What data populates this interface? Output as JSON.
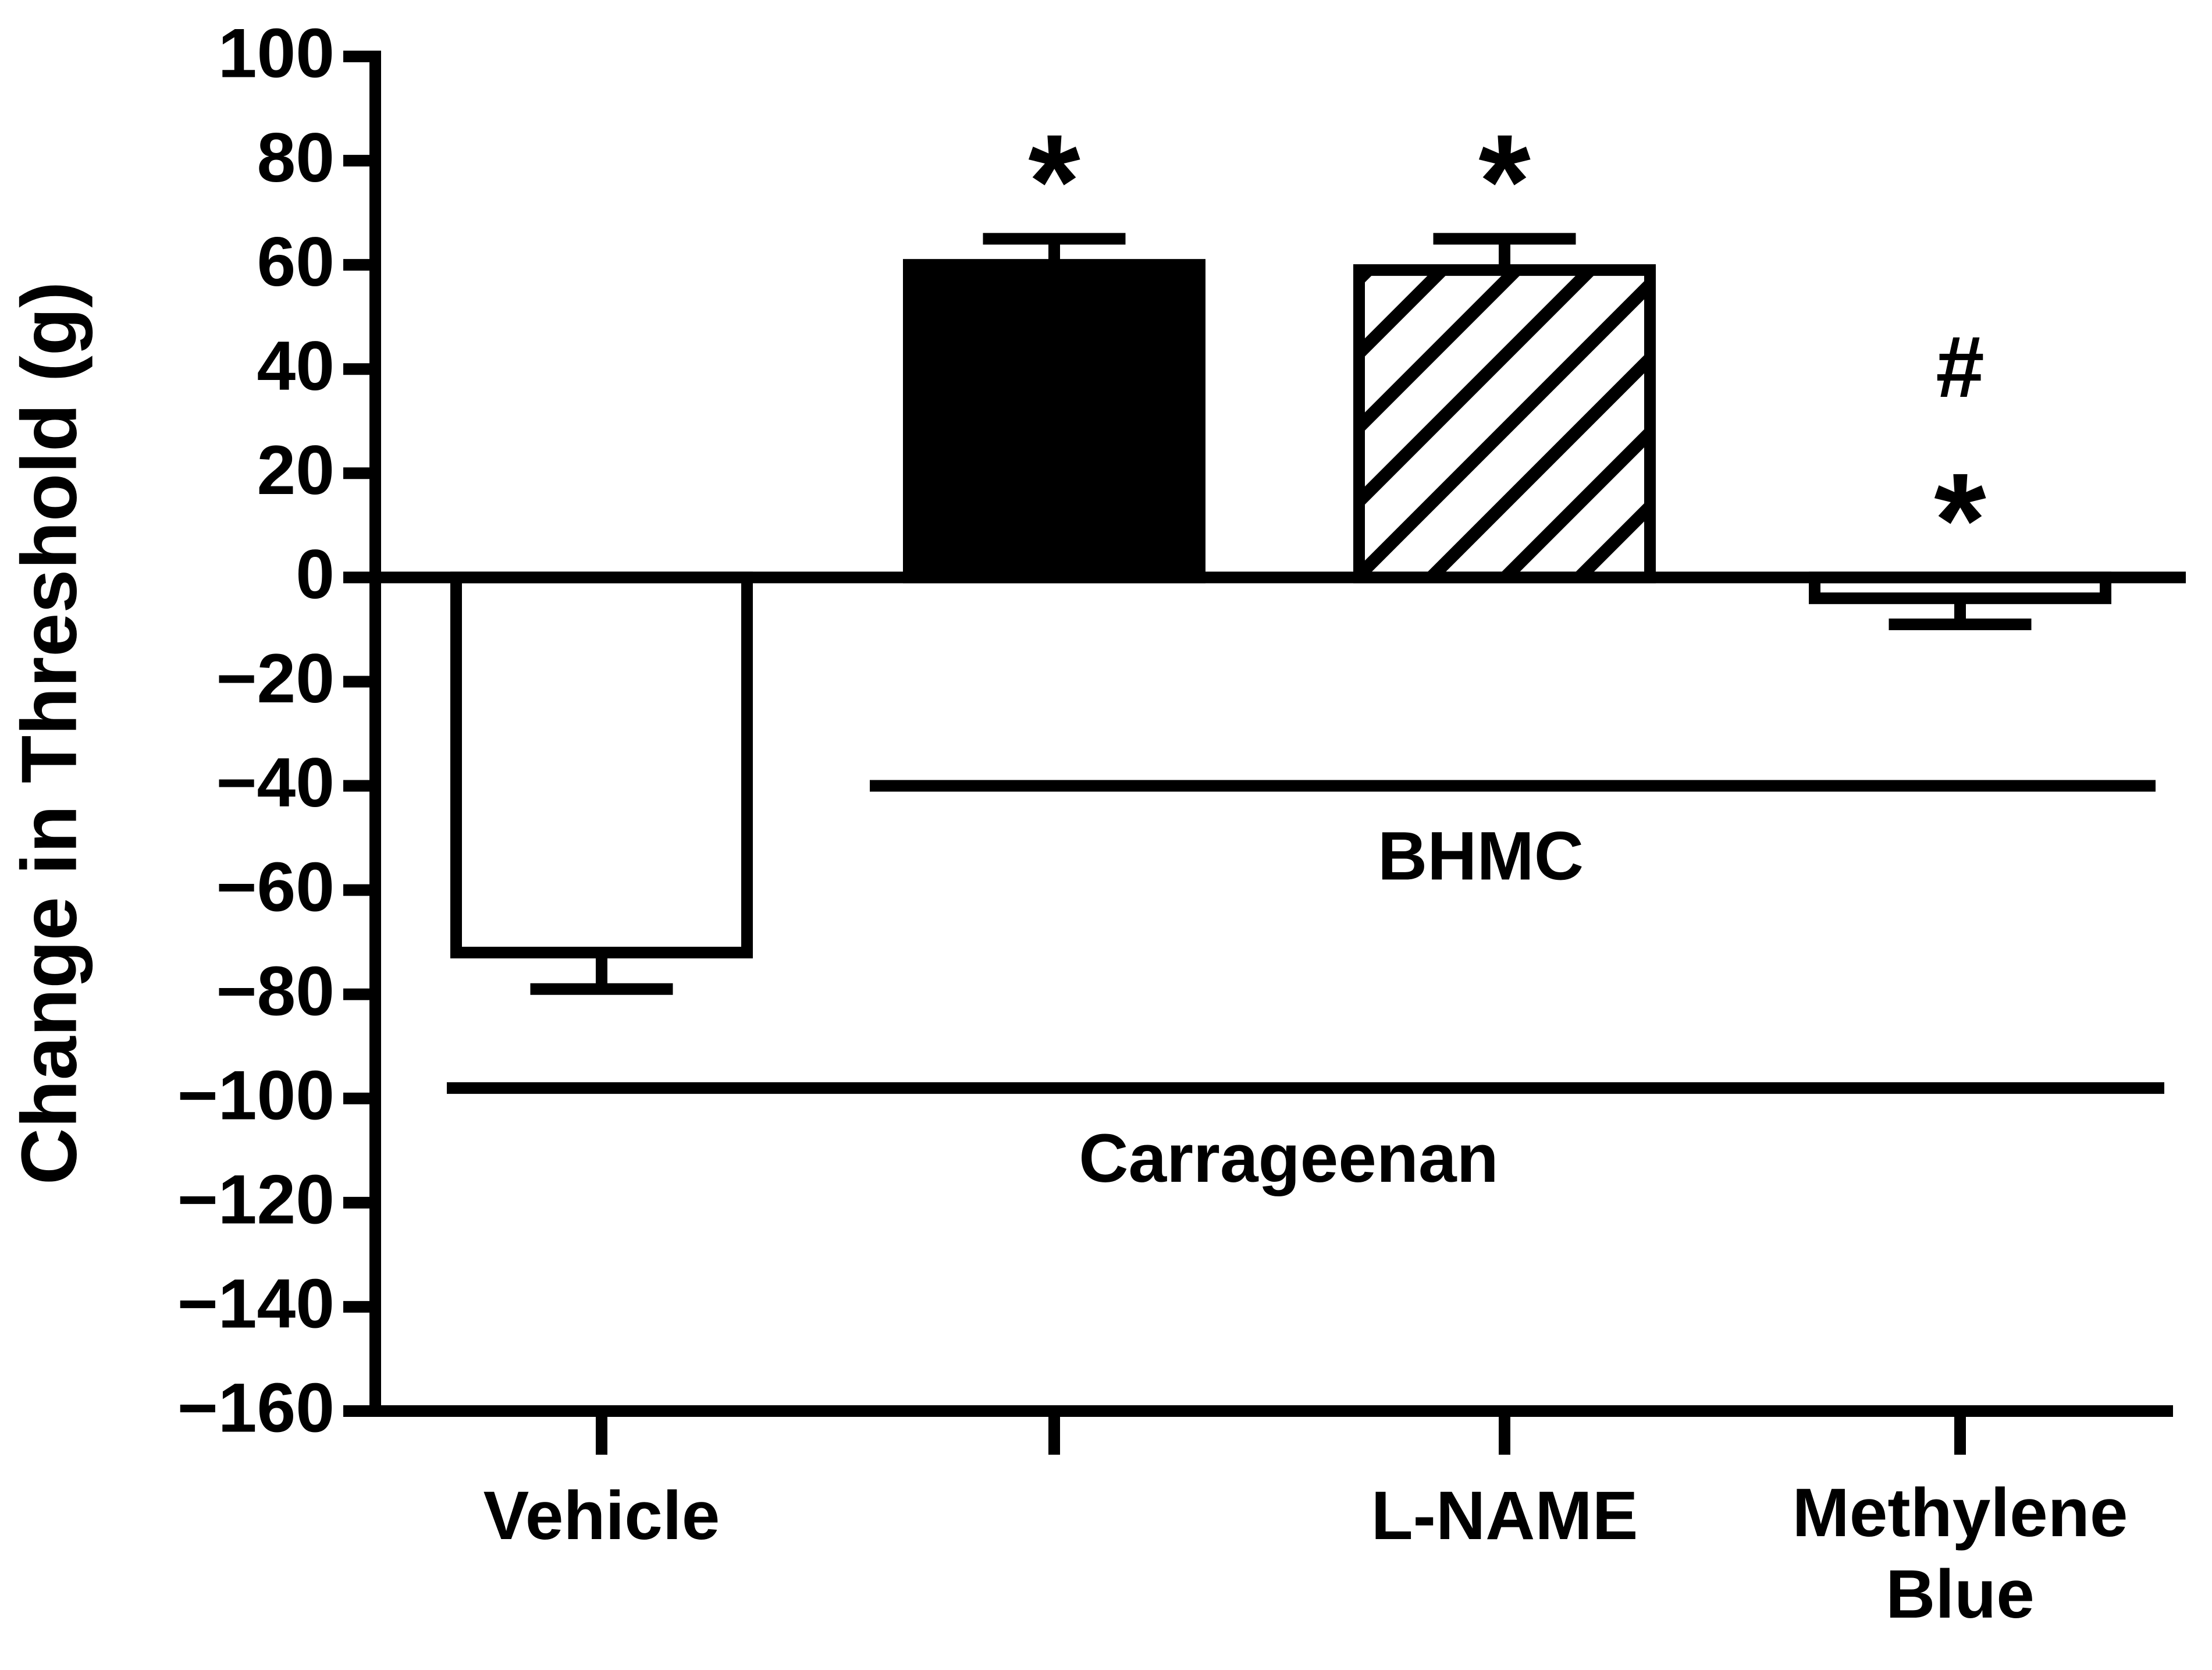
{
  "chart_data": {
    "type": "bar",
    "y_label": "Change in Threshold (g)",
    "categories": [
      "Vehicle",
      null,
      "L-NAME",
      "Methylene Blue"
    ],
    "values": [
      -72,
      60,
      59,
      -4
    ],
    "errors": [
      7,
      5,
      6,
      5
    ],
    "fills": [
      "white",
      "black",
      "hatch",
      "white"
    ],
    "markers": [
      null,
      [
        "*"
      ],
      [
        "*"
      ],
      [
        "*",
        "#"
      ]
    ],
    "groups": [
      {
        "label": "BHMC",
        "y": -40,
        "from": 1,
        "to": 3
      },
      {
        "label": "Carrageenan",
        "y": -98,
        "from": 0,
        "to": 3
      }
    ],
    "ylim": [
      -160,
      100
    ],
    "yticks": [
      {
        "value": -160,
        "label": "−160"
      },
      {
        "value": -140,
        "label": "−140"
      },
      {
        "value": -120,
        "label": "−120"
      },
      {
        "value": -100,
        "label": "−100"
      },
      {
        "value": -80,
        "label": "−80"
      },
      {
        "value": -60,
        "label": "−60"
      },
      {
        "value": -40,
        "label": "−40"
      },
      {
        "value": -20,
        "label": "−20"
      },
      0,
      20,
      40,
      60,
      80,
      100
    ]
  }
}
